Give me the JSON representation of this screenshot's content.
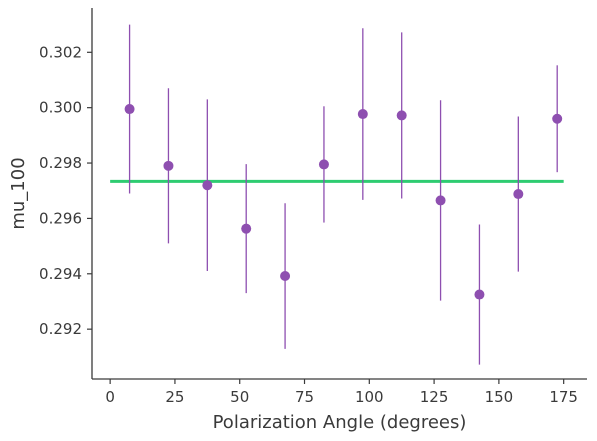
{
  "chart_data": {
    "type": "scatter",
    "title": "",
    "xlabel": "Polarization Angle (degrees)",
    "ylabel": "mu_100",
    "xlim": [
      -7,
      184
    ],
    "ylim": [
      0.2902,
      0.3036
    ],
    "xticks": [
      0,
      25,
      50,
      75,
      100,
      125,
      150,
      175
    ],
    "yticks": [
      0.292,
      0.294,
      0.296,
      0.298,
      0.3,
      0.302
    ],
    "ytick_labels": [
      "0.292",
      "0.294",
      "0.296",
      "0.298",
      "0.300",
      "0.302"
    ],
    "grid": false,
    "series": [
      {
        "kind": "errorbar",
        "color": "#8e4fb0",
        "x": [
          7.5,
          22.5,
          37.5,
          52.5,
          67.5,
          82.5,
          97.5,
          112.5,
          127.5,
          142.5,
          157.5,
          172.5
        ],
        "y": [
          0.29995,
          0.2979,
          0.2972,
          0.29563,
          0.29392,
          0.29795,
          0.29977,
          0.29972,
          0.29665,
          0.29325,
          0.29688,
          0.2996
        ],
        "yerr": [
          0.00305,
          0.0028,
          0.0031,
          0.00233,
          0.00263,
          0.0021,
          0.0031,
          0.003,
          0.00362,
          0.00253,
          0.0028,
          0.00193
        ]
      },
      {
        "kind": "line",
        "color": "#2ecc71",
        "x": [
          0,
          175
        ],
        "y": [
          0.29734,
          0.29734
        ]
      }
    ]
  }
}
